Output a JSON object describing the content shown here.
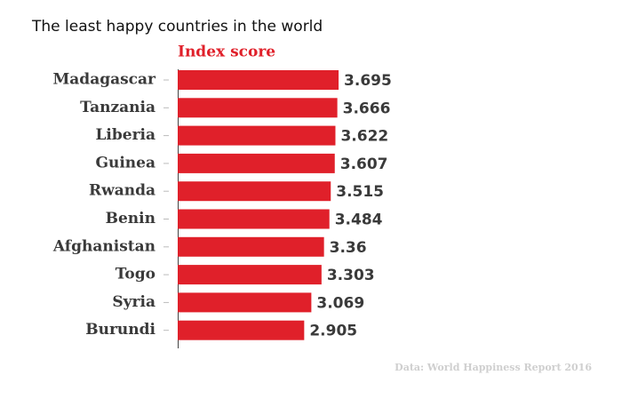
{
  "chart_data": {
    "type": "bar",
    "orientation": "horizontal",
    "title": "The least happy countries in the world",
    "subtitle": "Index score",
    "source": "Data: World Happiness Report 2016",
    "categories": [
      "Madagascar",
      "Tanzania",
      "Liberia",
      "Guinea",
      "Rwanda",
      "Benin",
      "Afghanistan",
      "Togo",
      "Syria",
      "Burundi"
    ],
    "values": [
      3.695,
      3.666,
      3.622,
      3.607,
      3.515,
      3.484,
      3.36,
      3.303,
      3.069,
      2.905
    ],
    "color": "#e0202a"
  }
}
